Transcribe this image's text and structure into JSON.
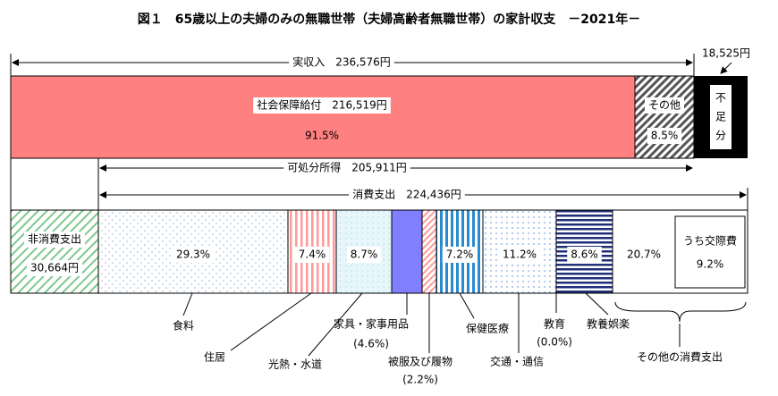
{
  "title": "図１　65歳以上の夫婦のみの無職世帯（夫婦高齢者無職世帯）の家計収支　－2021年－",
  "income": {
    "label": "実収入　236,576円",
    "shortfall_amount": "18,525円",
    "social_security": {
      "label": "社会保障給付　216,519円",
      "pct": "91.5%"
    },
    "other": {
      "label": "その他",
      "pct": "8.5%"
    },
    "shortfall": "不足分"
  },
  "disposable": "可処分所得　205,911円",
  "consumption": "消費支出　224,436円",
  "items": [
    {
      "label": "非消費支出",
      "amount": "30,664円"
    },
    {
      "label": "食料",
      "pct": "29.3%"
    },
    {
      "label": "住居",
      "pct": "7.4%"
    },
    {
      "label": "光熱・水道",
      "pct": "8.7%"
    },
    {
      "label": "家具・家事用品",
      "note": "(4.6%)"
    },
    {
      "label": "被服及び履物",
      "note": "(2.2%)"
    },
    {
      "label": "保健医療",
      "pct": "7.2%"
    },
    {
      "label": "交通・通信",
      "pct": "11.2%"
    },
    {
      "label": "教育",
      "note": "(0.0%)"
    },
    {
      "label": "教養娯楽",
      "pct": "8.6%"
    },
    {
      "label": "その他の消費支出",
      "pct": "20.7%",
      "sub_label": "うち交際費",
      "sub_pct": "9.2%"
    }
  ]
}
